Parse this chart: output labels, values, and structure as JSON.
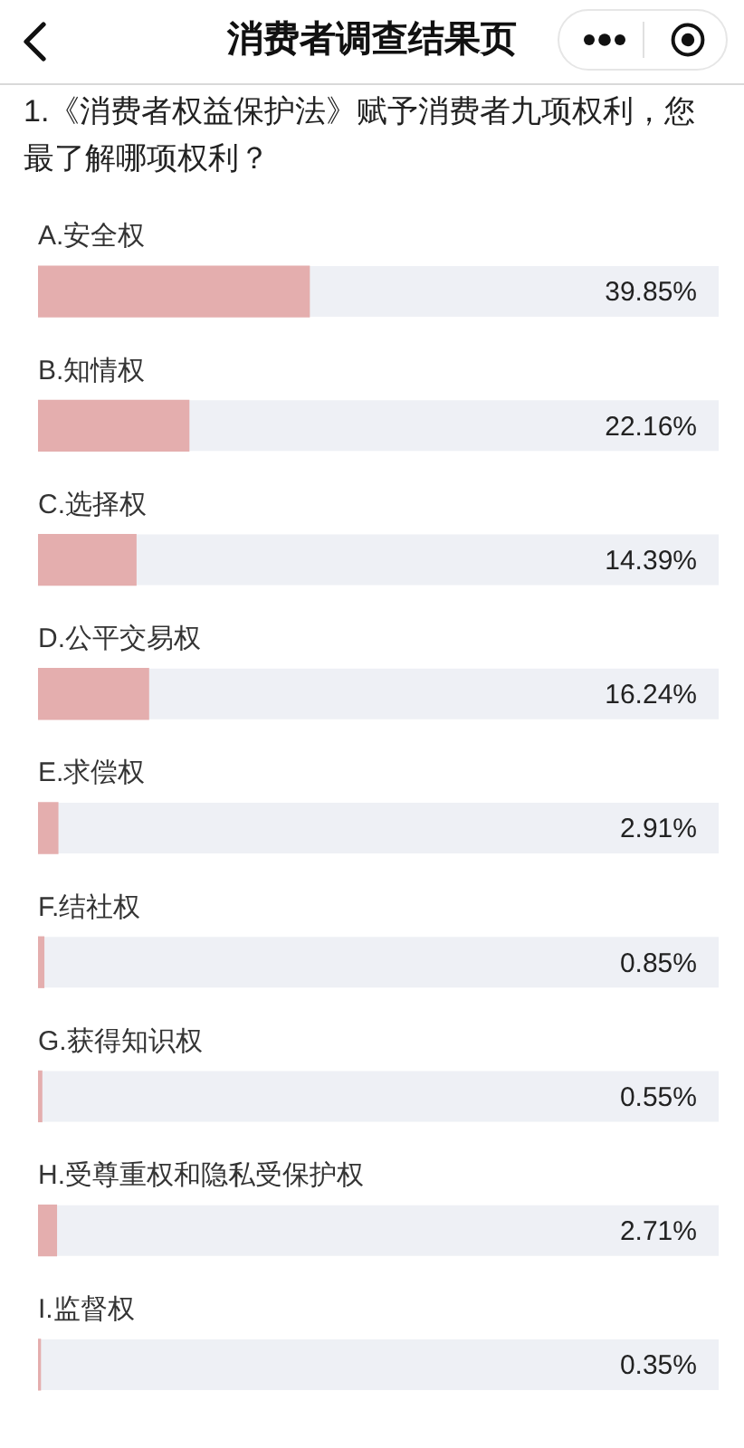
{
  "chart_data": {
    "type": "bar",
    "orientation": "horizontal",
    "title": "消费者调查结果页",
    "subtitle": "1.《消费者权益保护法》赋予消费者九项权利，您最了解哪项权利？",
    "categories": [
      "A.安全权",
      "B.知情权",
      "C.选择权",
      "D.公平交易权",
      "E.求偿权",
      "F.结社权",
      "G.获得知识权",
      "H.受尊重权和隐私受保护权",
      "I.监督权"
    ],
    "values": [
      39.85,
      22.16,
      14.39,
      16.24,
      2.91,
      0.85,
      0.55,
      2.71,
      0.35
    ],
    "value_labels": [
      "39.85%",
      "22.16%",
      "14.39%",
      "16.24%",
      "2.91%",
      "0.85%",
      "0.55%",
      "2.71%",
      "0.35%"
    ],
    "color": "#e4aeae",
    "xlim": [
      0,
      100
    ],
    "tick_labels": "y"
  }
}
